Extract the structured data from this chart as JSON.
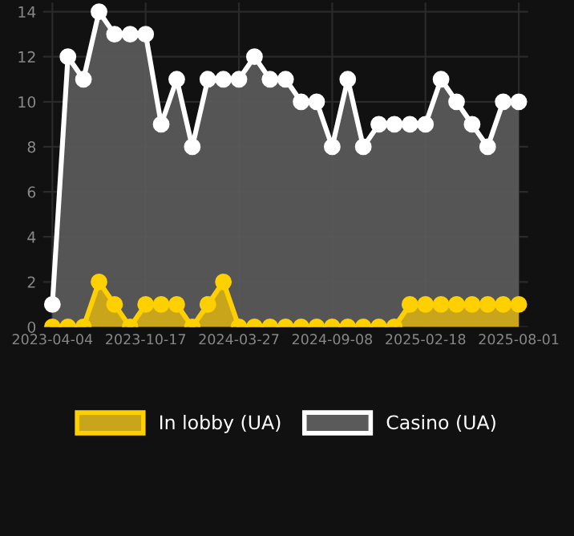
{
  "chart_data": {
    "type": "area",
    "categories": [
      "2023-04-04",
      null,
      null,
      null,
      null,
      null,
      "2023-10-17",
      null,
      null,
      null,
      null,
      null,
      "2024-03-27",
      null,
      null,
      null,
      null,
      null,
      "2024-09-08",
      null,
      null,
      null,
      null,
      null,
      "2025-02-18",
      null,
      null,
      null,
      null,
      null,
      "2025-08-01"
    ],
    "series": [
      {
        "name": "In lobby (UA)",
        "color": "#ffd000",
        "values": [
          0,
          0,
          0,
          2,
          1,
          0,
          1,
          1,
          1,
          0,
          1,
          2,
          0,
          0,
          0,
          0,
          0,
          0,
          0,
          0,
          0,
          0,
          0,
          1,
          1,
          1,
          1,
          1,
          1,
          1,
          1
        ]
      },
      {
        "name": "Casino (UA)",
        "color": "#ffffff",
        "values": [
          1,
          12,
          11,
          14,
          13,
          13,
          13,
          9,
          11,
          8,
          11,
          11,
          11,
          12,
          11,
          11,
          10,
          10,
          8,
          11,
          8,
          9,
          9,
          9,
          9,
          11,
          10,
          9,
          8,
          10,
          10
        ]
      }
    ],
    "ylim": [
      0,
      14.4
    ],
    "yticks": [
      0,
      2,
      4,
      6,
      8,
      10,
      12,
      14
    ],
    "grid": true,
    "legend": "bottom",
    "marker": "circle"
  }
}
